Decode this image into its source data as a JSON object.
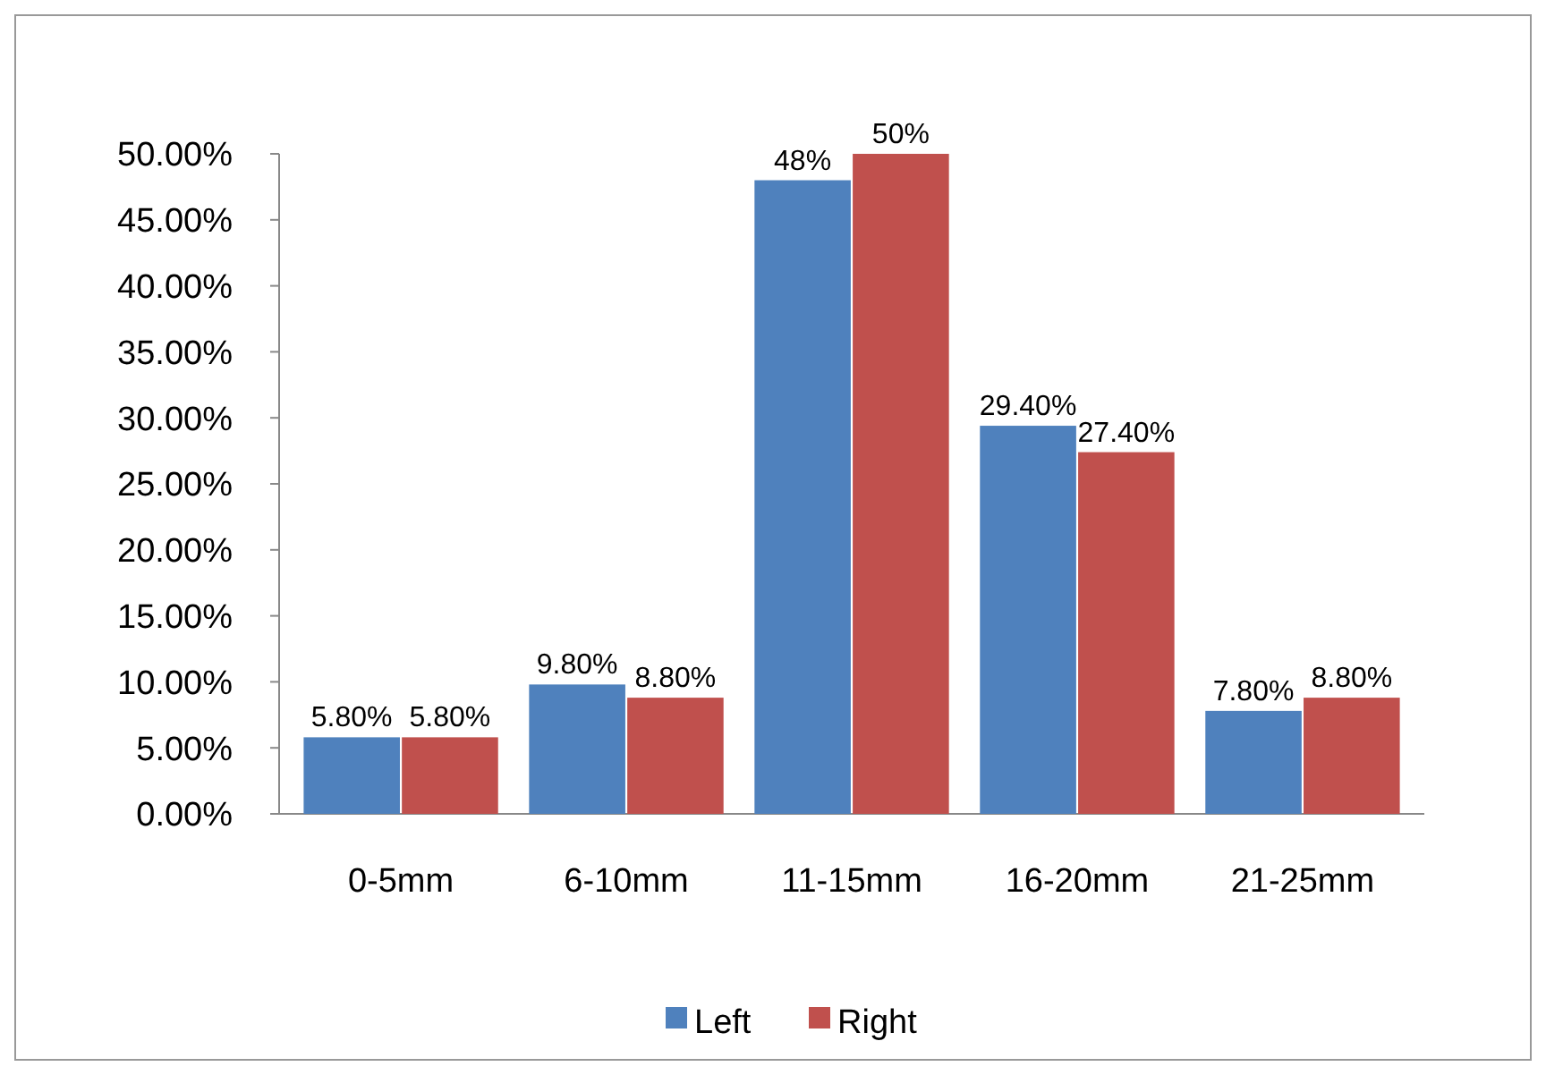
{
  "chart_data": {
    "type": "bar",
    "categories": [
      "0-5mm",
      "6-10mm",
      "11-15mm",
      "16-20mm",
      "21-25mm"
    ],
    "series": [
      {
        "name": "Left",
        "color": "#4f81bd",
        "values": [
          5.8,
          9.8,
          48,
          29.4,
          7.8
        ],
        "value_labels": [
          "5.80%",
          "9.80%",
          "48%",
          "29.40%",
          "7.80%"
        ]
      },
      {
        "name": "Right",
        "color": "#c0504d",
        "values": [
          5.8,
          8.8,
          50,
          27.4,
          8.8
        ],
        "value_labels": [
          "5.80%",
          "8.80%",
          "50%",
          "27.40%",
          "8.80%"
        ]
      }
    ],
    "ylim": [
      0,
      50
    ],
    "yticks": [
      {
        "value": 0,
        "label": "0.00%"
      },
      {
        "value": 5,
        "label": "5.00%"
      },
      {
        "value": 10,
        "label": "10.00%"
      },
      {
        "value": 15,
        "label": "15.00%"
      },
      {
        "value": 20,
        "label": "20.00%"
      },
      {
        "value": 25,
        "label": "25.00%"
      },
      {
        "value": 30,
        "label": "30.00%"
      },
      {
        "value": 35,
        "label": "35.00%"
      },
      {
        "value": 40,
        "label": "40.00%"
      },
      {
        "value": 45,
        "label": "45.00%"
      },
      {
        "value": 50,
        "label": "50.00%"
      }
    ],
    "grid": false,
    "legend": "bottom"
  }
}
